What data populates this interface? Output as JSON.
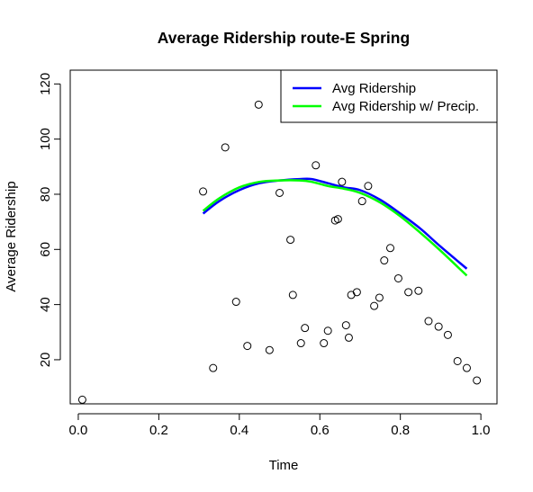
{
  "chart_data": {
    "type": "scatter",
    "title": "Average Ridership route-E Spring",
    "xlabel": "Time",
    "ylabel": "Average Ridership",
    "xlim": [
      -0.02,
      1.04
    ],
    "ylim": [
      4,
      125
    ],
    "x_ticks": [
      0.0,
      0.2,
      0.4,
      0.6,
      0.8,
      1.0
    ],
    "x_tick_labels": [
      "0.0",
      "0.2",
      "0.4",
      "0.6",
      "0.8",
      "1.0"
    ],
    "y_ticks": [
      20,
      40,
      60,
      80,
      100,
      120
    ],
    "y_tick_labels": [
      "20",
      "40",
      "60",
      "80",
      "100",
      "120"
    ],
    "grid": false,
    "legend_position": "top-right",
    "points": [
      {
        "x": 0.01,
        "y": 5.5
      },
      {
        "x": 0.31,
        "y": 81
      },
      {
        "x": 0.335,
        "y": 17
      },
      {
        "x": 0.365,
        "y": 97
      },
      {
        "x": 0.392,
        "y": 41
      },
      {
        "x": 0.42,
        "y": 25
      },
      {
        "x": 0.448,
        "y": 112.5
      },
      {
        "x": 0.475,
        "y": 23.5
      },
      {
        "x": 0.5,
        "y": 80.5
      },
      {
        "x": 0.527,
        "y": 63.5
      },
      {
        "x": 0.533,
        "y": 43.5
      },
      {
        "x": 0.553,
        "y": 26
      },
      {
        "x": 0.563,
        "y": 31.5
      },
      {
        "x": 0.59,
        "y": 90.5
      },
      {
        "x": 0.61,
        "y": 26
      },
      {
        "x": 0.62,
        "y": 30.5
      },
      {
        "x": 0.638,
        "y": 70.5
      },
      {
        "x": 0.645,
        "y": 71
      },
      {
        "x": 0.655,
        "y": 84.5
      },
      {
        "x": 0.665,
        "y": 32.5
      },
      {
        "x": 0.672,
        "y": 28
      },
      {
        "x": 0.678,
        "y": 43.5
      },
      {
        "x": 0.692,
        "y": 44.5
      },
      {
        "x": 0.705,
        "y": 77.5
      },
      {
        "x": 0.72,
        "y": 83
      },
      {
        "x": 0.735,
        "y": 39.5
      },
      {
        "x": 0.748,
        "y": 42.5
      },
      {
        "x": 0.76,
        "y": 56
      },
      {
        "x": 0.775,
        "y": 60.5
      },
      {
        "x": 0.795,
        "y": 49.5
      },
      {
        "x": 0.82,
        "y": 44.5
      },
      {
        "x": 0.845,
        "y": 45
      },
      {
        "x": 0.87,
        "y": 34
      },
      {
        "x": 0.895,
        "y": 32
      },
      {
        "x": 0.918,
        "y": 29
      },
      {
        "x": 0.942,
        "y": 19.5
      },
      {
        "x": 0.965,
        "y": 17
      },
      {
        "x": 0.99,
        "y": 12.5
      }
    ],
    "series": [
      {
        "name": "Avg Ridership",
        "color": "#0000ff",
        "x": [
          0.31,
          0.35,
          0.4,
          0.45,
          0.5,
          0.55,
          0.58,
          0.62,
          0.66,
          0.7,
          0.75,
          0.8,
          0.85,
          0.9,
          0.965
        ],
        "y": [
          73,
          77.5,
          81.5,
          84,
          85,
          85.5,
          85.5,
          84,
          82.5,
          81.5,
          78,
          73,
          67.5,
          61,
          53
        ]
      },
      {
        "name": "Avg Ridership w/ Precip.",
        "color": "#00ff00",
        "x": [
          0.31,
          0.35,
          0.4,
          0.45,
          0.5,
          0.55,
          0.58,
          0.62,
          0.66,
          0.7,
          0.75,
          0.8,
          0.85,
          0.9,
          0.965
        ],
        "y": [
          74,
          78.5,
          82.5,
          84.5,
          85,
          85,
          84.5,
          83,
          82,
          80.5,
          77,
          72,
          66,
          59.5,
          50.5
        ]
      }
    ]
  }
}
